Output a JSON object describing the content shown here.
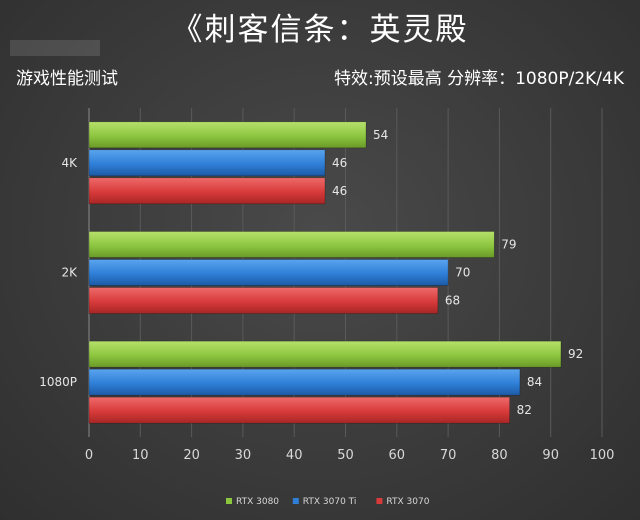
{
  "title": "《刺客信条：英灵殿",
  "subtitle_left": "游戏性能测试",
  "subtitle_right": "特效:预设最高  分辨率：1080P/2K/4K",
  "colors": {
    "rtx3080": "#8cc63f",
    "rtx3070ti": "#2f7fd8",
    "rtx3070": "#d83a3a"
  },
  "chart_data": {
    "type": "bar",
    "orientation": "horizontal",
    "categories": [
      "4K",
      "2K",
      "1080P"
    ],
    "series": [
      {
        "name": "RTX 3080",
        "values": [
          54,
          79,
          92
        ]
      },
      {
        "name": "RTX 3070 Ti",
        "values": [
          46,
          70,
          84
        ]
      },
      {
        "name": "RTX 3070",
        "values": [
          46,
          68,
          82
        ]
      }
    ],
    "xlim": [
      0,
      100
    ],
    "xticks": [
      0,
      10,
      20,
      30,
      40,
      50,
      60,
      70,
      80,
      90,
      100
    ],
    "grid": true,
    "legend_position": "bottom"
  }
}
